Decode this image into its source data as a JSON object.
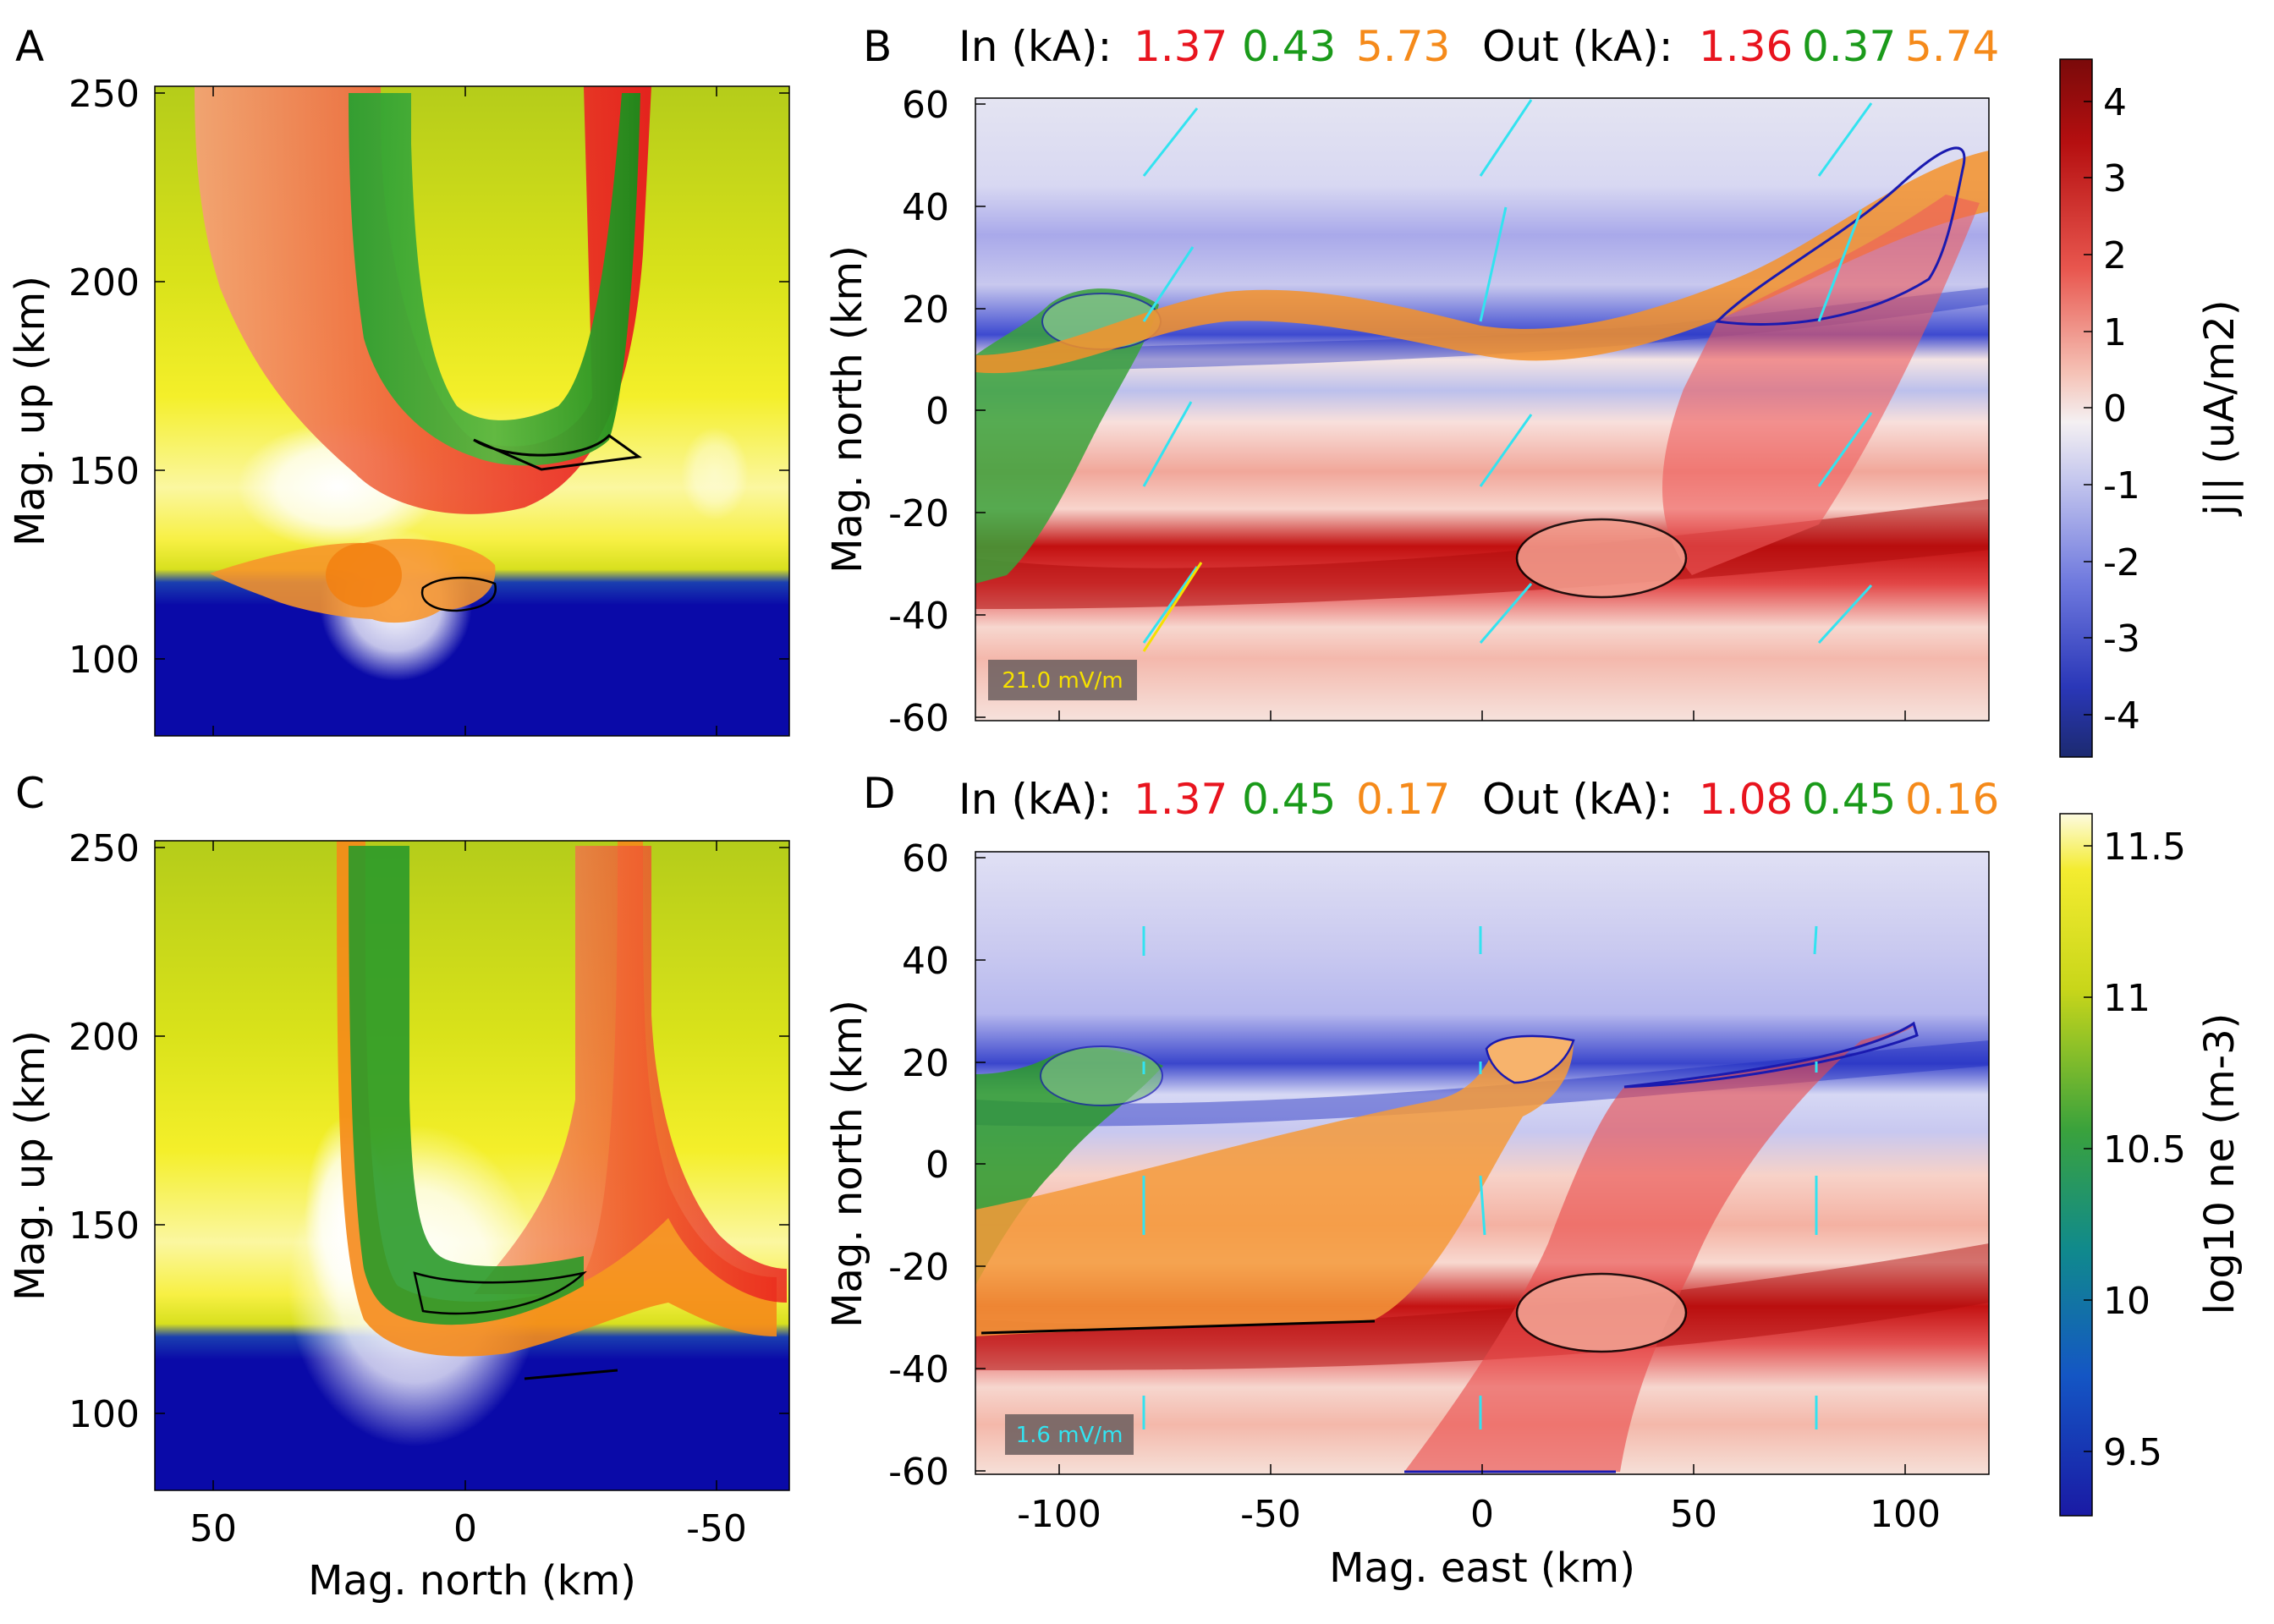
{
  "panels": {
    "A": {
      "label": "A",
      "xlabel": "Mag. north (km)",
      "ylabel": "Mag. up (km)",
      "xticks": [
        "50",
        "0",
        "-50"
      ],
      "yticks": [
        "100",
        "150",
        "200",
        "250"
      ]
    },
    "B": {
      "label": "B",
      "currents": {
        "in_label": "In (kA):",
        "out_label": "Out (kA):",
        "in": [
          "1.37",
          "0.43",
          "5.73"
        ],
        "out": [
          "1.36",
          "0.37",
          "5.74"
        ]
      },
      "ylabel": "Mag. north (km)",
      "yticks": [
        "60",
        "40",
        "20",
        "0",
        "-20",
        "-40",
        "-60"
      ],
      "scale_label": "21.0 mV/m"
    },
    "C": {
      "label": "C",
      "xlabel": "Mag. north (km)",
      "ylabel": "Mag. up (km)",
      "xticks": [
        "50",
        "0",
        "-50"
      ],
      "yticks": [
        "100",
        "150",
        "200",
        "250"
      ]
    },
    "D": {
      "label": "D",
      "currents": {
        "in_label": "In (kA):",
        "out_label": "Out (kA):",
        "in": [
          "1.37",
          "0.45",
          "0.17"
        ],
        "out": [
          "1.08",
          "0.45",
          "0.16"
        ]
      },
      "xlabel": "Mag. east (km)",
      "ylabel": "Mag. north (km)",
      "xticks": [
        "-100",
        "-50",
        "0",
        "50",
        "100"
      ],
      "yticks": [
        "60",
        "40",
        "20",
        "0",
        "-20",
        "-40",
        "-60"
      ],
      "scale_label": "1.6 mV/m"
    }
  },
  "colorbars": {
    "top": {
      "label": "j|| (uA/m2)",
      "ticks": [
        "4",
        "3",
        "2",
        "1",
        "0",
        "-1",
        "-2",
        "-3",
        "-4"
      ],
      "range": [
        -4.5,
        4.5
      ]
    },
    "bottom": {
      "label": "log10 ne (m-3)",
      "ticks": [
        "11.5",
        "11",
        "10.5",
        "10",
        "9.5"
      ],
      "range": [
        9.3,
        11.6
      ]
    }
  },
  "colors": {
    "red_tube": "#e8141e",
    "green_tube": "#1a9a1a",
    "orange_tube": "#f58a1a",
    "efield_arrow": "#33e3f0",
    "efield_arrow_alt": "#f5e000"
  },
  "chart_data": [
    {
      "type": "heatmap",
      "panel": "A",
      "xlabel": "Mag. north (km)",
      "ylabel": "Mag. up (km)",
      "xlim": [
        62,
        -62
      ],
      "ylim": [
        80,
        252
      ],
      "colorbar": "log10 ne (m-3)",
      "field": "log10 ne",
      "tubes": [
        {
          "color": "red",
          "footprint_altitude_km": 250
        },
        {
          "color": "green",
          "footprint_altitude_km": 250
        },
        {
          "color": "orange",
          "footprint_altitude_km": 120
        }
      ]
    },
    {
      "type": "heatmap",
      "panel": "B",
      "xlabel": "Mag. east (km)",
      "ylabel": "Mag. north (km)",
      "xlim": [
        -125,
        125
      ],
      "ylim": [
        -63,
        63
      ],
      "colorbar": "j|| (uA/m2)",
      "currents_in_kA": {
        "red": 1.37,
        "green": 0.43,
        "orange": 5.73
      },
      "currents_out_kA": {
        "red": 1.36,
        "green": 0.37,
        "orange": 5.74
      },
      "efield_scale_mV_per_m": 21.0
    },
    {
      "type": "heatmap",
      "panel": "C",
      "xlabel": "Mag. north (km)",
      "ylabel": "Mag. up (km)",
      "xlim": [
        62,
        -62
      ],
      "ylim": [
        80,
        252
      ],
      "colorbar": "log10 ne (m-3)"
    },
    {
      "type": "heatmap",
      "panel": "D",
      "xlabel": "Mag. east (km)",
      "ylabel": "Mag. north (km)",
      "xlim": [
        -125,
        125
      ],
      "ylim": [
        -63,
        63
      ],
      "colorbar": "j|| (uA/m2)",
      "currents_in_kA": {
        "red": 1.37,
        "green": 0.45,
        "orange": 0.17
      },
      "currents_out_kA": {
        "red": 1.08,
        "green": 0.45,
        "orange": 0.16
      },
      "efield_scale_mV_per_m": 1.6
    }
  ]
}
